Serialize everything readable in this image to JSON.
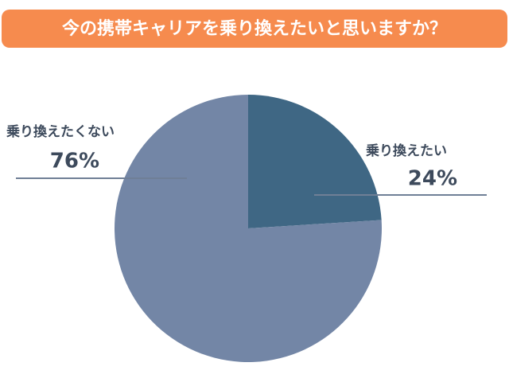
{
  "chart_data": {
    "type": "pie",
    "title": "今の携帯キャリアを乗り換えたいと思いますか？",
    "categories": [
      "乗り換えたい",
      "乗り換えたくない"
    ],
    "values": [
      24,
      76
    ],
    "value_labels": [
      "24%",
      "76%"
    ],
    "colors": [
      "#3f6784",
      "#7386a6"
    ]
  }
}
